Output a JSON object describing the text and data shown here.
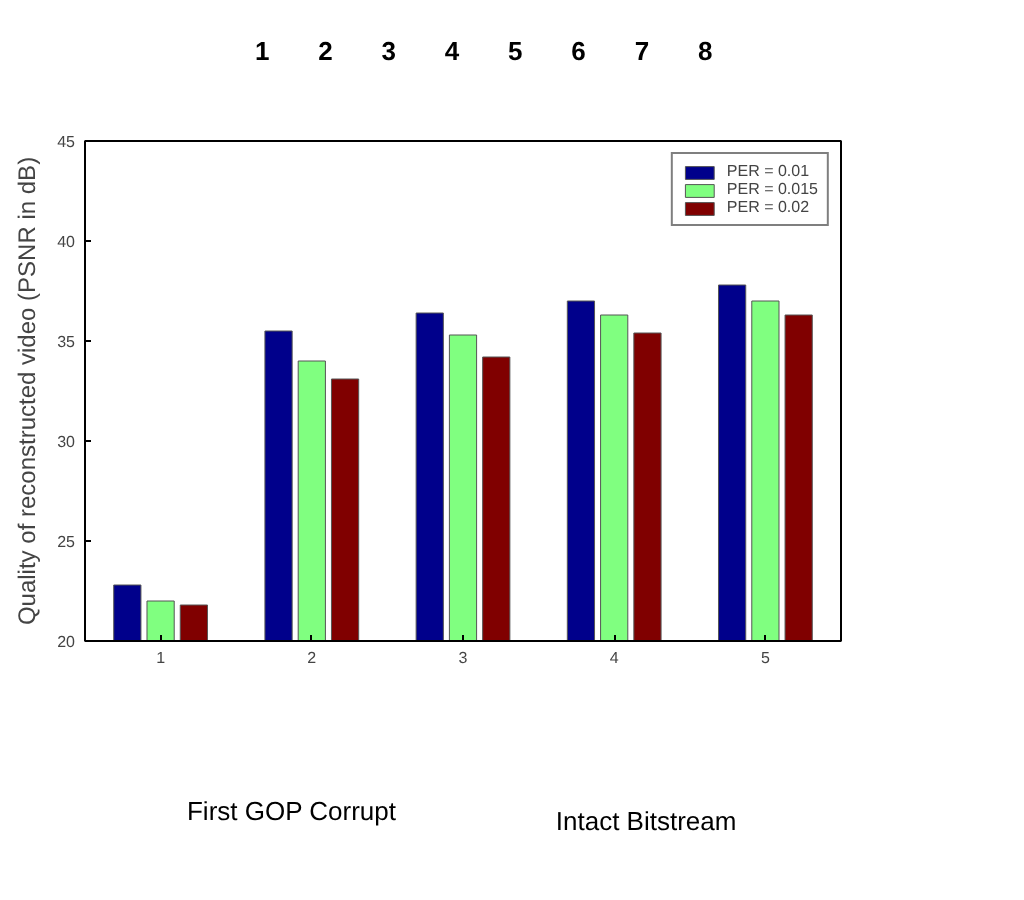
{
  "chart_data": {
    "type": "bar",
    "ylabel": "Quality of reconstructed video (PSNR in dB)",
    "categories": [
      "1",
      "2",
      "3",
      "4",
      "5"
    ],
    "series": [
      {
        "name": "PER = 0.01",
        "color": "#00008b",
        "values": [
          22.8,
          35.5,
          36.4,
          37.0,
          37.8
        ]
      },
      {
        "name": "PER = 0.015",
        "color": "#80ff80",
        "values": [
          22.0,
          34.0,
          35.3,
          36.3,
          37.0
        ]
      },
      {
        "name": "PER = 0.02",
        "color": "#800000",
        "values": [
          21.8,
          33.1,
          34.2,
          35.4,
          36.3
        ]
      }
    ],
    "ylim": [
      20,
      45
    ],
    "yticks": [
      20,
      25,
      30,
      35,
      40,
      45
    ],
    "grid": false,
    "legend": "top right",
    "annotations": [
      "1",
      "2",
      "3",
      "4",
      "5",
      "6",
      "7",
      "8",
      "First GOP Corrupt",
      "Intact Bitstream"
    ]
  }
}
